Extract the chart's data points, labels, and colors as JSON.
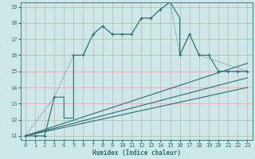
{
  "xlabel": "Humidex (Indice chaleur)",
  "ylabel": "",
  "bg_color": "#cde8e8",
  "line_color": "#2a6e6e",
  "grid_color": "#b8d8d8",
  "xlim": [
    -0.5,
    23.5
  ],
  "ylim": [
    10.75,
    19.25
  ],
  "xticks": [
    0,
    1,
    2,
    3,
    4,
    5,
    6,
    7,
    8,
    9,
    10,
    11,
    12,
    13,
    14,
    15,
    16,
    17,
    18,
    19,
    20,
    21,
    22,
    23
  ],
  "yticks": [
    11,
    12,
    13,
    14,
    15,
    16,
    17,
    18,
    19
  ],
  "main_x": [
    0,
    1,
    2,
    3,
    4,
    4,
    5,
    5,
    6,
    7,
    8,
    9,
    10,
    11,
    12,
    13,
    14,
    15,
    16,
    16,
    17,
    18,
    19,
    20,
    21,
    22,
    23
  ],
  "main_y": [
    11,
    11,
    11,
    13.4,
    13.4,
    12.1,
    12.1,
    16.0,
    16.0,
    17.3,
    17.8,
    17.3,
    17.3,
    17.3,
    18.3,
    18.3,
    18.85,
    19.3,
    18.3,
    16.0,
    17.3,
    16.0,
    16.0,
    15.0,
    15.0,
    15.0,
    15.0
  ],
  "marker_x": [
    0,
    1,
    2,
    3,
    5,
    6,
    7,
    8,
    9,
    10,
    11,
    12,
    13,
    14,
    15,
    16,
    17,
    18,
    19,
    20,
    21,
    22,
    23
  ],
  "marker_y": [
    11,
    11,
    11,
    13.4,
    16.0,
    16.0,
    17.3,
    17.8,
    17.3,
    17.3,
    17.3,
    18.3,
    18.3,
    18.85,
    19.3,
    16.0,
    17.3,
    16.0,
    16.0,
    15.0,
    15.0,
    15.0,
    15.0
  ],
  "dot_x": [
    0,
    3,
    5,
    6,
    7,
    8,
    9,
    10,
    11,
    12,
    13,
    14,
    15,
    16,
    17,
    18,
    23
  ],
  "dot_y": [
    11,
    13.4,
    16.0,
    16.0,
    17.3,
    17.8,
    17.3,
    17.3,
    17.3,
    18.3,
    18.3,
    18.85,
    19.3,
    16.0,
    17.3,
    16.0,
    15.0
  ],
  "line2_x": [
    0,
    23
  ],
  "line2_y": [
    11.0,
    15.5
  ],
  "line3_x": [
    0,
    23
  ],
  "line3_y": [
    11.0,
    14.6
  ],
  "line4_x": [
    0,
    23
  ],
  "line4_y": [
    11.0,
    14.0
  ]
}
